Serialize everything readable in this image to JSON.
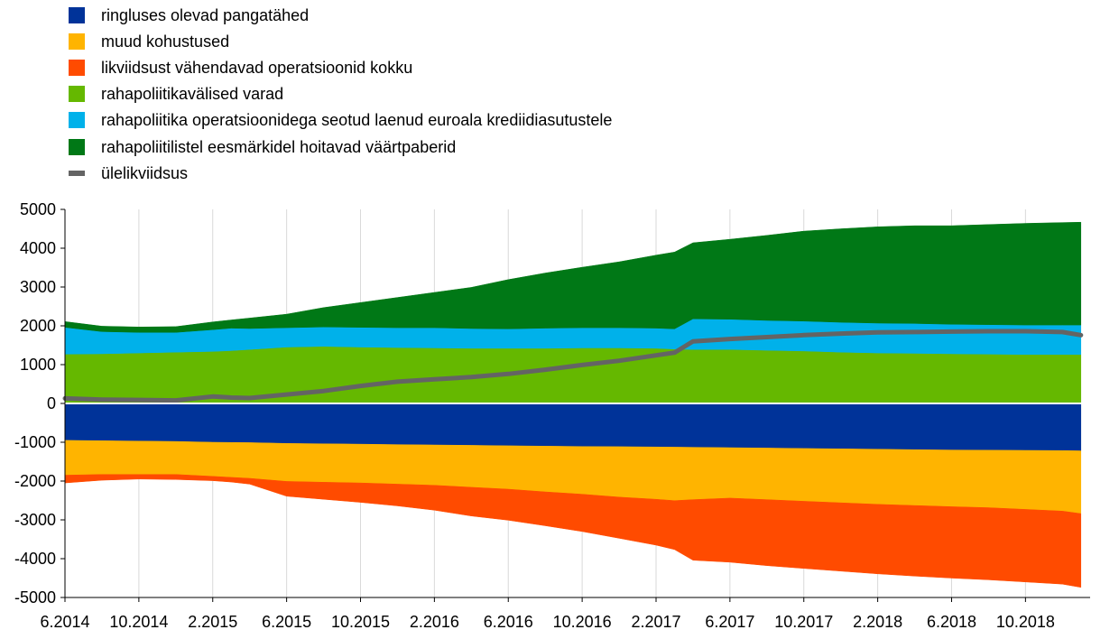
{
  "chart_data": {
    "type": "area",
    "title": "",
    "xlabel": "",
    "ylabel": "",
    "ylim": [
      -5000,
      5000
    ],
    "yticks": [
      5000,
      4000,
      3000,
      2000,
      1000,
      0,
      -1000,
      -2000,
      -3000,
      -4000,
      -5000
    ],
    "x_tick_labels": [
      "6.2014",
      "10.2014",
      "2.2015",
      "6.2015",
      "10.2015",
      "2.2016",
      "6.2016",
      "10.2016",
      "2.2017",
      "6.2017",
      "10.2017",
      "2.2018",
      "6.2018",
      "10.2018"
    ],
    "grid": {
      "vertical": true,
      "horizontal": false
    },
    "legend_position": "top-left",
    "x": [
      "2014-06",
      "2014-08",
      "2014-10",
      "2014-12",
      "2015-02",
      "2015-03",
      "2015-04",
      "2015-06",
      "2015-08",
      "2015-10",
      "2015-12",
      "2016-02",
      "2016-04",
      "2016-06",
      "2016-08",
      "2016-10",
      "2016-12",
      "2017-02",
      "2017-03",
      "2017-04",
      "2017-06",
      "2017-08",
      "2017-10",
      "2017-12",
      "2018-02",
      "2018-04",
      "2018-06",
      "2018-08",
      "2018-10",
      "2018-12",
      "2019-01"
    ],
    "series": [
      {
        "name": "ringluses olevad pangatähed",
        "color": "#003399",
        "side": "negative",
        "values": [
          950,
          960,
          970,
          980,
          1000,
          1005,
          1010,
          1030,
          1040,
          1050,
          1060,
          1070,
          1080,
          1090,
          1100,
          1110,
          1115,
          1120,
          1125,
          1130,
          1140,
          1150,
          1160,
          1170,
          1180,
          1190,
          1200,
          1205,
          1210,
          1215,
          1220
        ]
      },
      {
        "name": "muud kohustused",
        "color": "#FFB400",
        "side": "negative",
        "values": [
          900,
          870,
          860,
          850,
          880,
          900,
          920,
          980,
          990,
          1000,
          1020,
          1040,
          1080,
          1120,
          1180,
          1230,
          1300,
          1350,
          1380,
          1350,
          1300,
          1330,
          1360,
          1390,
          1420,
          1440,
          1460,
          1480,
          1520,
          1560,
          1620
        ]
      },
      {
        "name": "likviidsust vähendavad operatsioonid kokku",
        "color": "#FF4B00",
        "side": "negative",
        "values": [
          200,
          150,
          120,
          130,
          110,
          120,
          150,
          380,
          440,
          500,
          560,
          640,
          740,
          800,
          870,
          960,
          1060,
          1180,
          1260,
          1560,
          1650,
          1700,
          1730,
          1760,
          1790,
          1820,
          1840,
          1860,
          1870,
          1880,
          1900
        ]
      },
      {
        "name": "rahapoliitikavälised varad",
        "color": "#65B800",
        "side": "positive",
        "values": [
          1270,
          1280,
          1300,
          1320,
          1340,
          1360,
          1390,
          1450,
          1470,
          1450,
          1440,
          1430,
          1420,
          1420,
          1420,
          1430,
          1430,
          1420,
          1400,
          1390,
          1390,
          1370,
          1350,
          1320,
          1300,
          1290,
          1280,
          1270,
          1260,
          1260,
          1260
        ]
      },
      {
        "name": "rahapoliitika operatsioonidega seotud laenud euroala krediidiasutustele",
        "color": "#00B1EA",
        "side": "positive",
        "values": [
          690,
          570,
          530,
          510,
          560,
          580,
          540,
          500,
          500,
          510,
          510,
          520,
          510,
          500,
          520,
          520,
          520,
          520,
          520,
          790,
          780,
          770,
          770,
          770,
          770,
          770,
          760,
          760,
          760,
          760,
          760
        ]
      },
      {
        "name": "rahapoliitilistel eesmärkidel hoitavad väärtpaberid",
        "color": "#007816",
        "side": "positive",
        "values": [
          150,
          140,
          140,
          150,
          200,
          210,
          270,
          350,
          500,
          640,
          780,
          910,
          1060,
          1270,
          1420,
          1560,
          1700,
          1880,
          1980,
          1960,
          2060,
          2190,
          2320,
          2410,
          2480,
          2520,
          2540,
          2580,
          2620,
          2640,
          2650
        ]
      },
      {
        "name": "ülelikviidsus",
        "color": "#646464",
        "type": "line",
        "values": [
          130,
          100,
          90,
          80,
          180,
          150,
          140,
          230,
          320,
          450,
          560,
          620,
          680,
          760,
          870,
          990,
          1100,
          1240,
          1310,
          1600,
          1660,
          1710,
          1760,
          1800,
          1830,
          1840,
          1850,
          1860,
          1860,
          1840,
          1760
        ]
      }
    ]
  }
}
